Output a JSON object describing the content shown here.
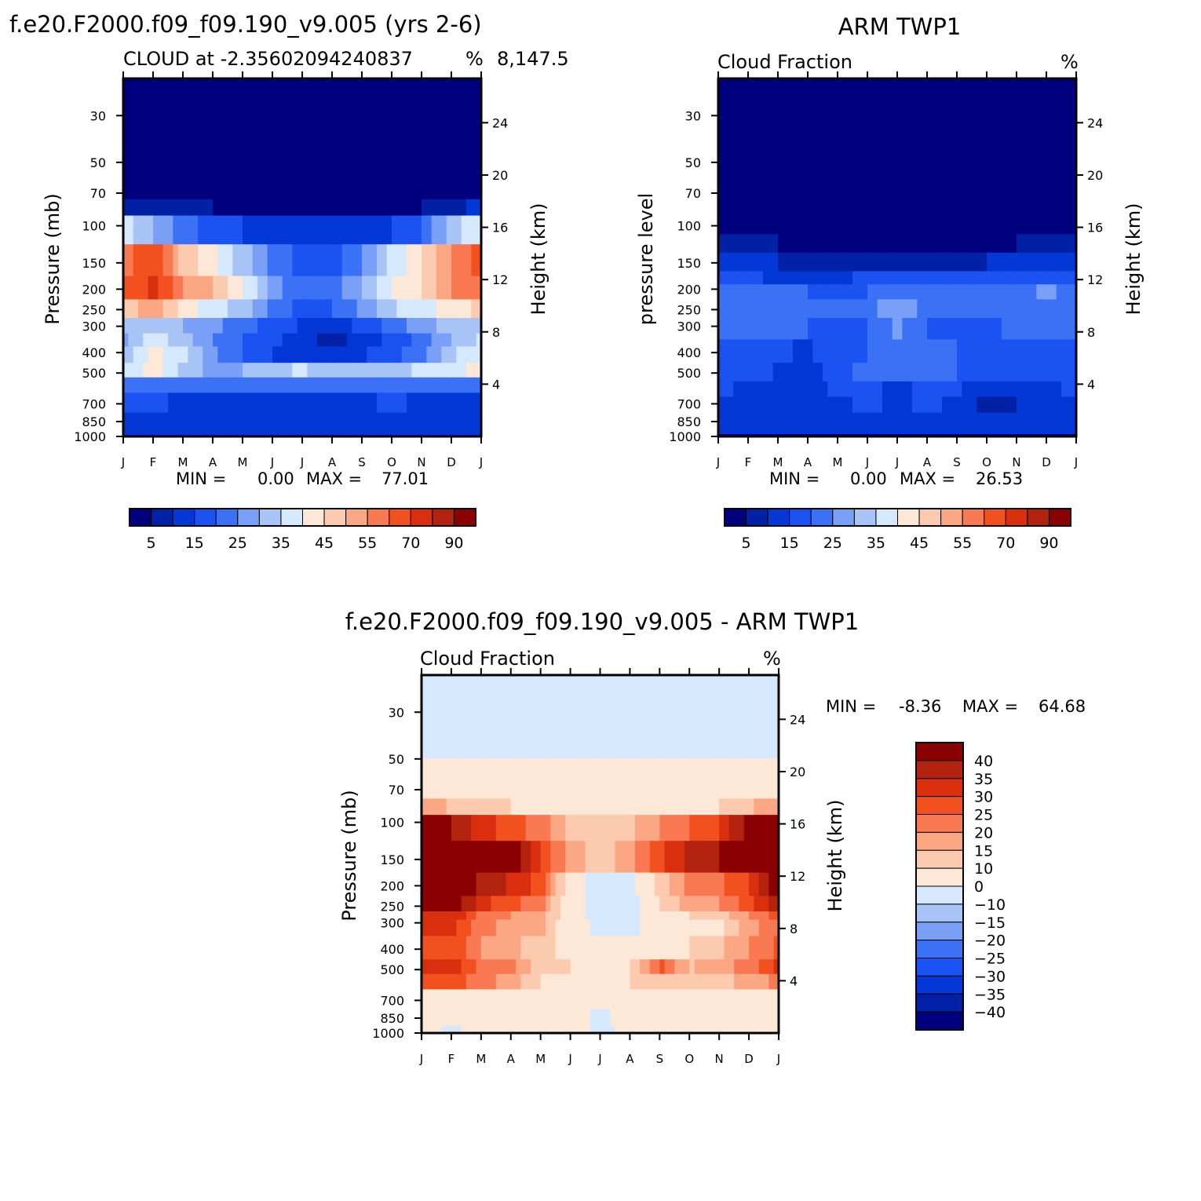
{
  "chart_data": [
    {
      "type": "heatmap",
      "title": "f.e20.F2000.f09_f09.190_v9.005 (yrs 2-6)",
      "subtitle_left": "CLOUD at -2.35602094240837",
      "subtitle_overlap": "8,147.5",
      "units": "%",
      "xlabel": "",
      "ylabel": "Pressure (mb)",
      "ylabel_right": "Height (km)",
      "months": [
        "J",
        "F",
        "M",
        "A",
        "M",
        "J",
        "J",
        "A",
        "S",
        "O",
        "N",
        "D",
        "J"
      ],
      "pressure_ticks": [
        30,
        50,
        70,
        100,
        150,
        200,
        250,
        300,
        400,
        500,
        700,
        850,
        1000
      ],
      "height_ticks": [
        24,
        20,
        16,
        12,
        8,
        4
      ],
      "ylim": [
        1000,
        20
      ],
      "min_label": "MIN =",
      "min_value": "0.00",
      "max_label": "MAX =",
      "max_value": "77.01",
      "colorbar_labels": [
        "5",
        "15",
        "25",
        "35",
        "45",
        "55",
        "70",
        "90"
      ],
      "colorbar_colors": [
        "#00007f",
        "#0020a6",
        "#0338d6",
        "#1a53f2",
        "#3b72f5",
        "#7a9ff7",
        "#a8c4f7",
        "#d6e8fd",
        "#fde8d8",
        "#fccaae",
        "#fba783",
        "#f97a52",
        "#f2501f",
        "#d92f0f",
        "#b2220f",
        "#8b0000"
      ],
      "field": {
        "rows_pressure": [
          20,
          30,
          50,
          70,
          80,
          100,
          150,
          200,
          250,
          300,
          350,
          400,
          500,
          550,
          700,
          850,
          1000
        ],
        "values": [
          [
            0,
            0,
            0,
            0,
            0,
            0,
            0,
            0,
            0,
            0,
            0,
            0,
            0
          ],
          [
            0,
            0,
            0,
            0,
            0,
            0,
            0,
            0,
            0,
            0,
            0,
            0,
            0
          ],
          [
            0,
            0,
            0,
            0,
            0,
            0,
            0,
            0,
            0,
            0,
            0,
            0,
            0
          ],
          [
            4,
            2,
            1,
            1,
            1,
            1,
            1,
            1,
            1,
            1,
            1,
            2,
            5
          ],
          [
            10,
            6,
            5,
            5,
            4,
            3,
            3,
            3,
            3,
            4,
            5,
            8,
            12
          ],
          [
            38,
            30,
            22,
            18,
            15,
            12,
            10,
            10,
            12,
            15,
            20,
            32,
            40
          ],
          [
            58,
            65,
            48,
            42,
            32,
            24,
            18,
            18,
            25,
            36,
            45,
            55,
            62
          ],
          [
            60,
            72,
            55,
            50,
            40,
            28,
            20,
            22,
            30,
            40,
            45,
            55,
            60
          ],
          [
            45,
            55,
            42,
            38,
            32,
            24,
            18,
            20,
            26,
            34,
            38,
            42,
            46
          ],
          [
            32,
            35,
            30,
            26,
            22,
            18,
            14,
            12,
            16,
            22,
            28,
            32,
            34
          ],
          [
            28,
            38,
            32,
            25,
            20,
            16,
            12,
            8,
            12,
            16,
            22,
            30,
            36
          ],
          [
            30,
            42,
            36,
            26,
            20,
            15,
            12,
            12,
            14,
            18,
            24,
            34,
            38
          ],
          [
            36,
            42,
            34,
            28,
            30,
            32,
            36,
            30,
            34,
            32,
            36,
            38,
            42
          ],
          [
            24,
            24,
            20,
            20,
            20,
            20,
            22,
            22,
            22,
            22,
            22,
            22,
            22
          ],
          [
            16,
            16,
            14,
            14,
            14,
            14,
            14,
            14,
            14,
            16,
            14,
            14,
            14
          ],
          [
            14,
            14,
            12,
            12,
            12,
            12,
            12,
            12,
            12,
            12,
            12,
            12,
            12
          ],
          [
            10,
            10,
            10,
            10,
            10,
            10,
            10,
            10,
            10,
            10,
            10,
            10,
            10
          ]
        ]
      }
    },
    {
      "type": "heatmap",
      "title": "ARM TWP1",
      "subtitle_left": "Cloud Fraction",
      "units": "%",
      "xlabel": "",
      "ylabel": "pressure level",
      "ylabel_right": "Height (km)",
      "months": [
        "J",
        "F",
        "M",
        "A",
        "M",
        "J",
        "J",
        "A",
        "S",
        "O",
        "N",
        "D",
        "J"
      ],
      "pressure_ticks": [
        30,
        50,
        70,
        100,
        150,
        200,
        250,
        300,
        400,
        500,
        700,
        850,
        1000
      ],
      "height_ticks": [
        24,
        20,
        16,
        12,
        8,
        4
      ],
      "ylim": [
        1000,
        20
      ],
      "min_label": "MIN =",
      "min_value": "0.00",
      "max_label": "MAX =",
      "max_value": "26.53",
      "colorbar_labels": [
        "5",
        "15",
        "25",
        "35",
        "45",
        "55",
        "70",
        "90"
      ],
      "colorbar_colors": [
        "#00007f",
        "#0020a6",
        "#0338d6",
        "#1a53f2",
        "#3b72f5",
        "#7a9ff7",
        "#a8c4f7",
        "#d6e8fd",
        "#fde8d8",
        "#fccaae",
        "#fba783",
        "#f97a52",
        "#f2501f",
        "#d92f0f",
        "#b2220f",
        "#8b0000"
      ],
      "field": {
        "rows_pressure": [
          20,
          30,
          50,
          70,
          100,
          120,
          150,
          180,
          200,
          250,
          300,
          400,
          500,
          600,
          700,
          850,
          950,
          1000
        ],
        "values": [
          [
            0,
            0,
            0,
            0,
            0,
            0,
            0,
            0,
            0,
            0,
            0,
            0,
            0
          ],
          [
            0,
            0,
            0,
            0,
            0,
            0,
            0,
            0,
            0,
            0,
            0,
            0,
            0
          ],
          [
            0,
            0,
            0,
            0,
            0,
            0,
            0,
            0,
            0,
            0,
            0,
            0,
            0
          ],
          [
            0,
            0,
            0,
            0,
            0,
            0,
            0,
            0,
            0,
            0,
            0,
            0,
            0
          ],
          [
            2,
            1,
            1,
            1,
            1,
            1,
            1,
            1,
            1,
            1,
            1,
            1,
            2
          ],
          [
            6,
            5,
            5,
            4,
            4,
            3,
            3,
            3,
            4,
            4,
            5,
            6,
            6
          ],
          [
            12,
            10,
            10,
            9,
            8,
            8,
            7,
            8,
            9,
            10,
            10,
            11,
            12
          ],
          [
            18,
            16,
            14,
            14,
            14,
            16,
            16,
            16,
            16,
            16,
            16,
            18,
            18
          ],
          [
            22,
            22,
            24,
            20,
            18,
            20,
            22,
            22,
            22,
            20,
            22,
            26,
            22
          ],
          [
            22,
            24,
            25,
            20,
            20,
            22,
            30,
            22,
            20,
            20,
            24,
            25,
            24
          ],
          [
            20,
            22,
            23,
            20,
            18,
            20,
            26,
            20,
            18,
            18,
            22,
            20,
            20
          ],
          [
            18,
            18,
            16,
            14,
            18,
            20,
            22,
            20,
            20,
            18,
            18,
            16,
            18
          ],
          [
            18,
            18,
            14,
            12,
            18,
            22,
            22,
            22,
            20,
            18,
            18,
            18,
            18
          ],
          [
            16,
            14,
            12,
            12,
            16,
            16,
            14,
            16,
            16,
            10,
            12,
            14,
            16
          ],
          [
            14,
            12,
            10,
            10,
            14,
            16,
            14,
            16,
            14,
            8,
            10,
            12,
            14
          ],
          [
            14,
            12,
            12,
            12,
            14,
            14,
            14,
            14,
            14,
            14,
            14,
            14,
            14
          ],
          [
            10,
            10,
            10,
            10,
            10,
            10,
            10,
            10,
            10,
            10,
            10,
            10,
            10
          ],
          [
            4,
            4,
            4,
            4,
            4,
            4,
            4,
            4,
            4,
            4,
            4,
            4,
            4
          ]
        ]
      }
    },
    {
      "type": "heatmap",
      "title": "f.e20.F2000.f09_f09.190_v9.005 - ARM TWP1",
      "subtitle_left": "Cloud Fraction",
      "units": "%",
      "xlabel": "",
      "ylabel": "Pressure (mb)",
      "ylabel_right": "Height (km)",
      "months": [
        "J",
        "F",
        "M",
        "A",
        "M",
        "J",
        "J",
        "A",
        "S",
        "O",
        "N",
        "D",
        "J"
      ],
      "pressure_ticks": [
        30,
        50,
        70,
        100,
        150,
        200,
        250,
        300,
        400,
        500,
        700,
        850,
        1000
      ],
      "height_ticks": [
        24,
        20,
        16,
        12,
        8,
        4
      ],
      "ylim": [
        1000,
        20
      ],
      "min_label": "MIN =",
      "min_value": "-8.36",
      "max_label": "MAX =",
      "max_value": "64.68",
      "colorbar_labels": [
        "40",
        "35",
        "30",
        "25",
        "20",
        "15",
        "10",
        "0",
        "−10",
        "−15",
        "−20",
        "−25",
        "−30",
        "−35",
        "−40"
      ],
      "colorbar_colors": [
        "#8b0000",
        "#b2220f",
        "#d92f0f",
        "#f2501f",
        "#f97a52",
        "#fba783",
        "#fccaae",
        "#fde8d8",
        "#d6e8fd",
        "#a8c4f7",
        "#7a9ff7",
        "#3b72f5",
        "#1a53f2",
        "#0338d6",
        "#0020a6",
        "#00007f"
      ],
      "field": {
        "rows_pressure": [
          20,
          30,
          45,
          55,
          70,
          85,
          100,
          150,
          200,
          250,
          280,
          300,
          400,
          500,
          550,
          700,
          850,
          1000
        ],
        "values": [
          [
            -5,
            -5,
            -5,
            -5,
            -5,
            -5,
            -5,
            -5,
            -5,
            -5,
            -5,
            -5,
            -5
          ],
          [
            -5,
            -5,
            -5,
            -5,
            -5,
            -5,
            -5,
            -5,
            -5,
            -5,
            -5,
            -5,
            -5
          ],
          [
            -5,
            -5,
            -5,
            -5,
            -5,
            -5,
            -5,
            -5,
            -3,
            -5,
            -5,
            -5,
            -5
          ],
          [
            5,
            5,
            5,
            5,
            5,
            5,
            5,
            5,
            5,
            5,
            5,
            5,
            5
          ],
          [
            5,
            5,
            5,
            5,
            5,
            5,
            5,
            5,
            5,
            5,
            5,
            5,
            5
          ],
          [
            18,
            14,
            12,
            10,
            8,
            6,
            6,
            6,
            6,
            8,
            10,
            14,
            18
          ],
          [
            45,
            40,
            32,
            28,
            22,
            14,
            12,
            14,
            20,
            25,
            30,
            42,
            50
          ],
          [
            48,
            52,
            45,
            44,
            30,
            18,
            12,
            18,
            28,
            36,
            40,
            48,
            50
          ],
          [
            48,
            50,
            38,
            34,
            28,
            5,
            -5,
            -4,
            12,
            22,
            24,
            30,
            45
          ],
          [
            42,
            45,
            32,
            26,
            22,
            5,
            -6,
            -5,
            10,
            18,
            20,
            28,
            38
          ],
          [
            30,
            35,
            24,
            20,
            18,
            5,
            -6,
            -5,
            8,
            10,
            12,
            20,
            28
          ],
          [
            30,
            32,
            22,
            18,
            16,
            5,
            -3,
            -3,
            5,
            6,
            8,
            18,
            25
          ],
          [
            28,
            30,
            20,
            16,
            12,
            8,
            8,
            6,
            8,
            10,
            14,
            20,
            26
          ],
          [
            30,
            34,
            24,
            22,
            12,
            10,
            8,
            10,
            26,
            14,
            18,
            22,
            32
          ],
          [
            26,
            28,
            22,
            18,
            10,
            8,
            8,
            10,
            12,
            10,
            14,
            16,
            22
          ],
          [
            6,
            6,
            5,
            5,
            5,
            5,
            5,
            5,
            5,
            5,
            5,
            5,
            5
          ],
          [
            5,
            5,
            5,
            5,
            5,
            5,
            -2,
            5,
            5,
            5,
            5,
            5,
            5
          ],
          [
            3,
            -2,
            5,
            5,
            5,
            5,
            -3,
            3,
            5,
            5,
            5,
            5,
            5
          ]
        ]
      }
    }
  ]
}
